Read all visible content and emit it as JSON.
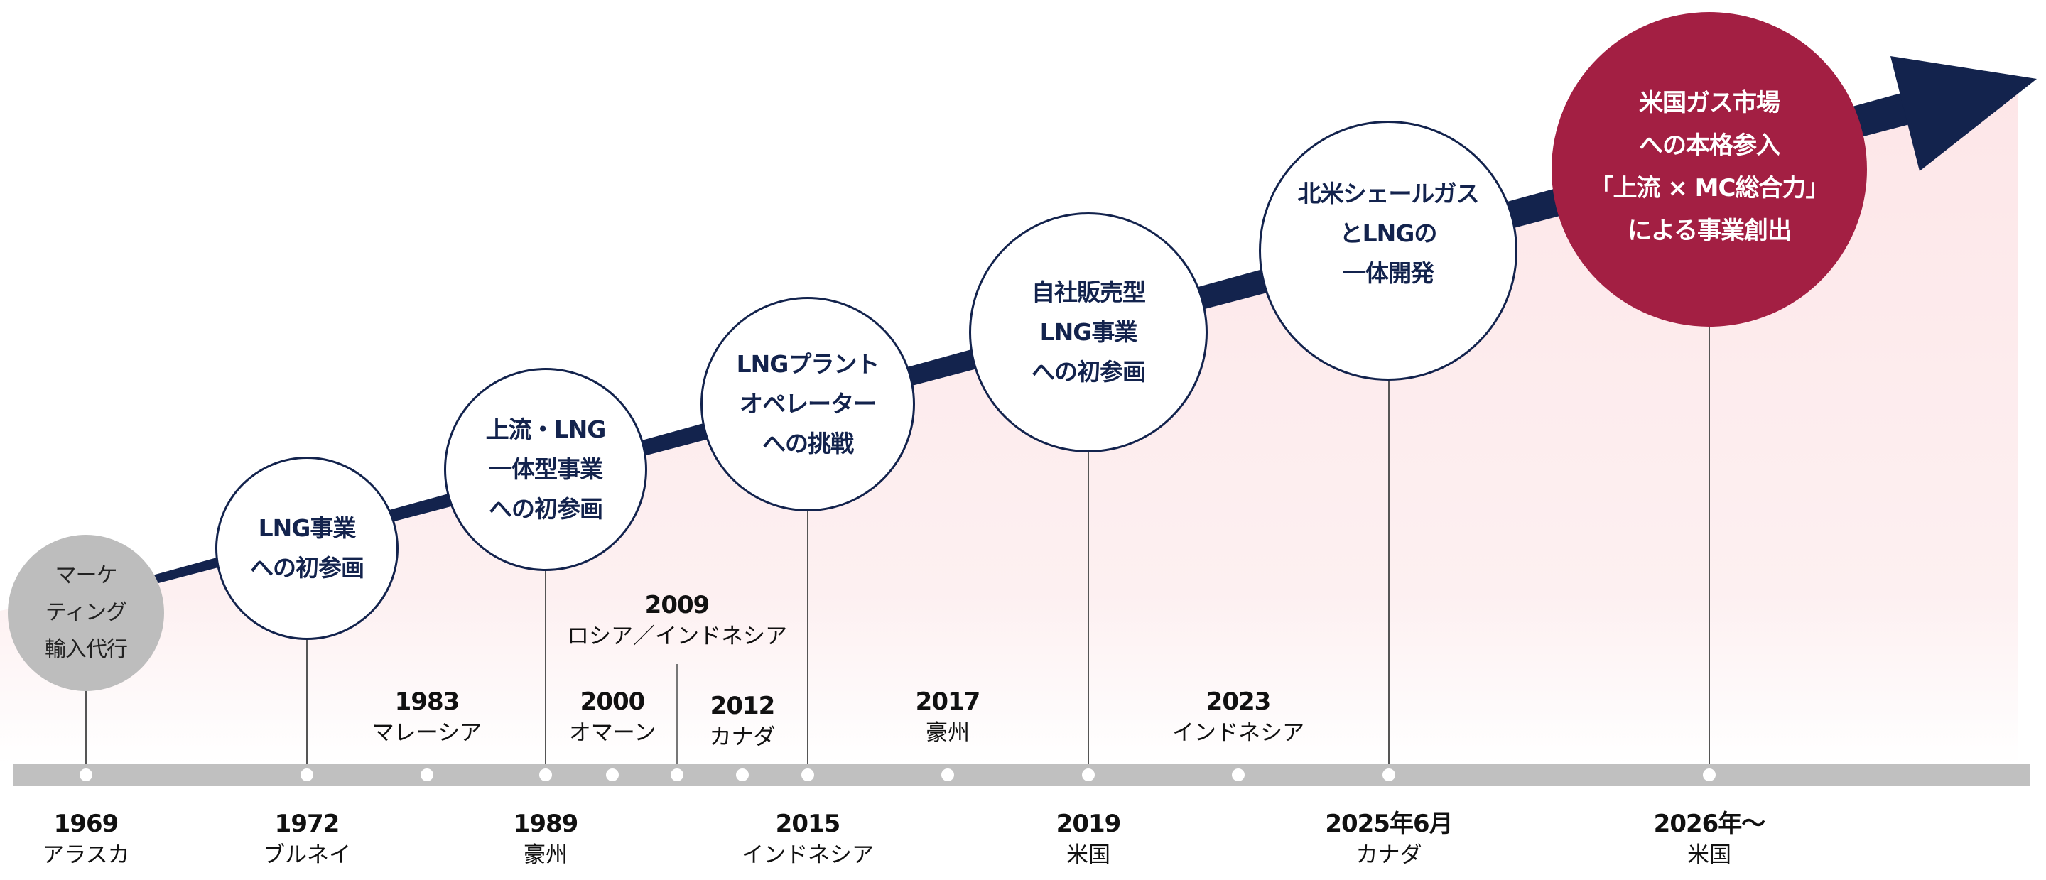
{
  "colors": {
    "navy": "#13234d",
    "red": "#a31f43",
    "gray": "#bdbdbd",
    "bar": "#c0c0c0",
    "background_tint": "#fde6e8"
  },
  "milestones": [
    {
      "lines": [
        "マーケ",
        "ティング",
        "輸入代行"
      ],
      "year": "1969",
      "country": "アラスカ",
      "style": "gray"
    },
    {
      "lines": [
        "LNG事業",
        "への初参画"
      ],
      "year": "1972",
      "country": "ブルネイ",
      "style": "white"
    },
    {
      "lines": [
        "上流・LNG",
        "一体型事業",
        "への初参画"
      ],
      "year": "1989",
      "country": "豪州",
      "style": "white"
    },
    {
      "lines": [
        "LNGプラント",
        "オペレーター",
        "への挑戦"
      ],
      "year": "2015",
      "country": "インドネシア",
      "style": "white"
    },
    {
      "lines": [
        "自社販売型",
        "LNG事業",
        "への初参画"
      ],
      "year": "2019",
      "country": "米国",
      "style": "white"
    },
    {
      "lines": [
        "北米シェールガス",
        "とLNGの",
        "一体開発"
      ],
      "year": "2025年6月",
      "country": "カナダ",
      "style": "white"
    },
    {
      "lines": [
        "米国ガス市場",
        "への本格参入",
        "「上流 × MC総合力」",
        "による事業創出"
      ],
      "year": "2026年〜",
      "country": "米国",
      "style": "red"
    }
  ],
  "events": [
    {
      "year": "1983",
      "country": "マレーシア"
    },
    {
      "year": "2000",
      "country": "オマーン"
    },
    {
      "year": "2009",
      "country": "ロシア／インドネシア"
    },
    {
      "year": "2012",
      "country": "カナダ"
    },
    {
      "year": "2017",
      "country": "豪州"
    },
    {
      "year": "2023",
      "country": "インドネシア"
    }
  ]
}
